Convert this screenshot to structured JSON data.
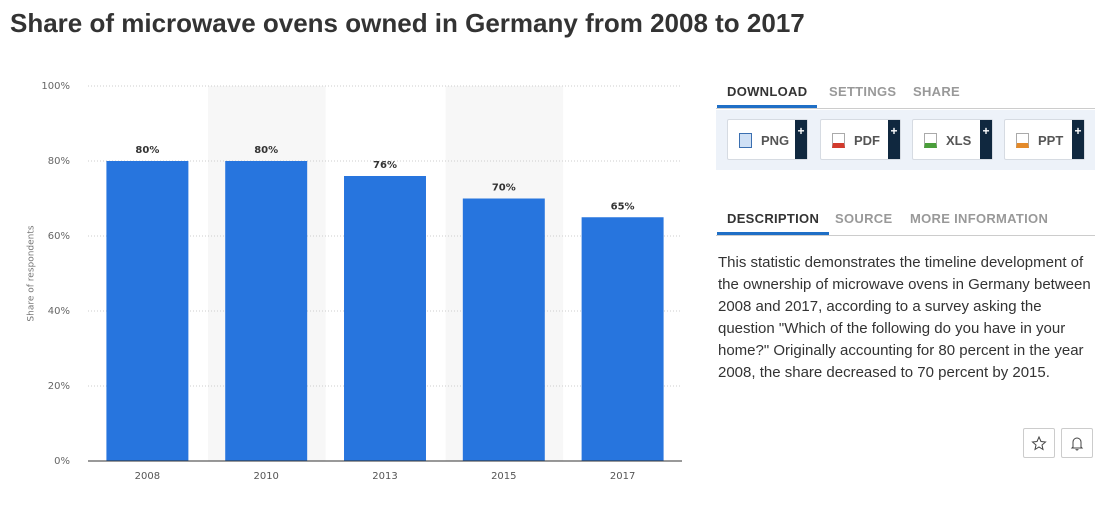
{
  "page_title": "Share of microwave ovens owned in Germany from 2008 to 2017",
  "chart_data": {
    "type": "bar",
    "y_label": "Share of respondents",
    "categories": [
      "2008",
      "2010",
      "2013",
      "2015",
      "2017"
    ],
    "values": [
      80,
      80,
      76,
      70,
      65
    ],
    "value_labels": [
      "80%",
      "80%",
      "76%",
      "70%",
      "65%"
    ],
    "color": "#2775de",
    "ylim": [
      0,
      100
    ],
    "yticks": [
      {
        "value": 0,
        "label": "0%"
      },
      {
        "value": 20,
        "label": "20%"
      },
      {
        "value": 40,
        "label": "40%"
      },
      {
        "value": 60,
        "label": "60%"
      },
      {
        "value": 80,
        "label": "80%"
      },
      {
        "value": 100,
        "label": "100%"
      }
    ],
    "grid": true
  },
  "tool_tabs": [
    "DOWNLOAD",
    "SETTINGS",
    "SHARE"
  ],
  "downloads": [
    "PNG",
    "PDF",
    "XLS",
    "PPT"
  ],
  "info_tabs": [
    "DESCRIPTION",
    "SOURCE",
    "MORE INFORMATION"
  ],
  "description": "This statistic demonstrates the timeline development of the ownership of microwave ovens in Germany between 2008 and 2017, according to a survey asking the question \"Which of the following do you have in your home?\" Originally accounting for 80 percent in the year 2008, the share decreased to 70 percent by 2015."
}
